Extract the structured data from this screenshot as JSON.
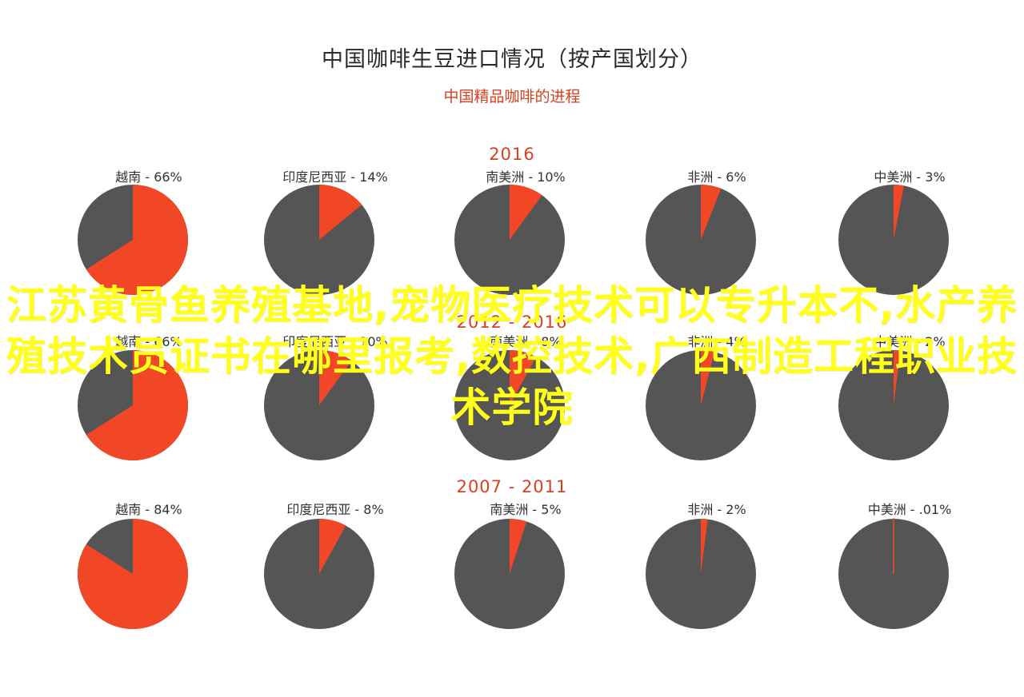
{
  "title": "中国咖啡生豆进口情况（按产国划分）",
  "subtitle": "中国精品咖啡的进程",
  "colors": {
    "share": "#f24726",
    "rest": "#555555",
    "accent": "#d8401f",
    "overlay": "#ffff1a"
  },
  "overlay_text": "江苏黄骨鱼养殖基地,宠物医疗技术可以专升本不,水产养殖技术员证书在哪里报考,数控技术,广西制造工程职业技术学院",
  "chart_data": [
    {
      "type": "pie",
      "title": "2016",
      "pies": [
        {
          "label": "越南 - 66%",
          "value": 66
        },
        {
          "label": "印度尼西亚 - 14%",
          "value": 14
        },
        {
          "label": "南美洲 - 10%",
          "value": 10
        },
        {
          "label": "非洲 - 6%",
          "value": 6
        },
        {
          "label": "中美洲 - 3%",
          "value": 3
        }
      ]
    },
    {
      "type": "pie",
      "title": "2012 - 2016",
      "pies": [
        {
          "label": "越南 - 66%",
          "value": 66
        },
        {
          "label": "印度尼西亚 - 10%",
          "value": 10
        },
        {
          "label": "南美洲 - 8%",
          "value": 8
        },
        {
          "label": "非洲 - 4%",
          "value": 4
        },
        {
          "label": "中美洲 - 2%",
          "value": 2
        }
      ]
    },
    {
      "type": "pie",
      "title": "2007 - 2011",
      "pies": [
        {
          "label": "越南 - 84%",
          "value": 84
        },
        {
          "label": "印度尼西亚 - 8%",
          "value": 8
        },
        {
          "label": "南美洲 - 5%",
          "value": 5
        },
        {
          "label": "非洲 - 2%",
          "value": 2
        },
        {
          "label": "中美洲 - .01%",
          "value": 0.01
        }
      ]
    }
  ]
}
